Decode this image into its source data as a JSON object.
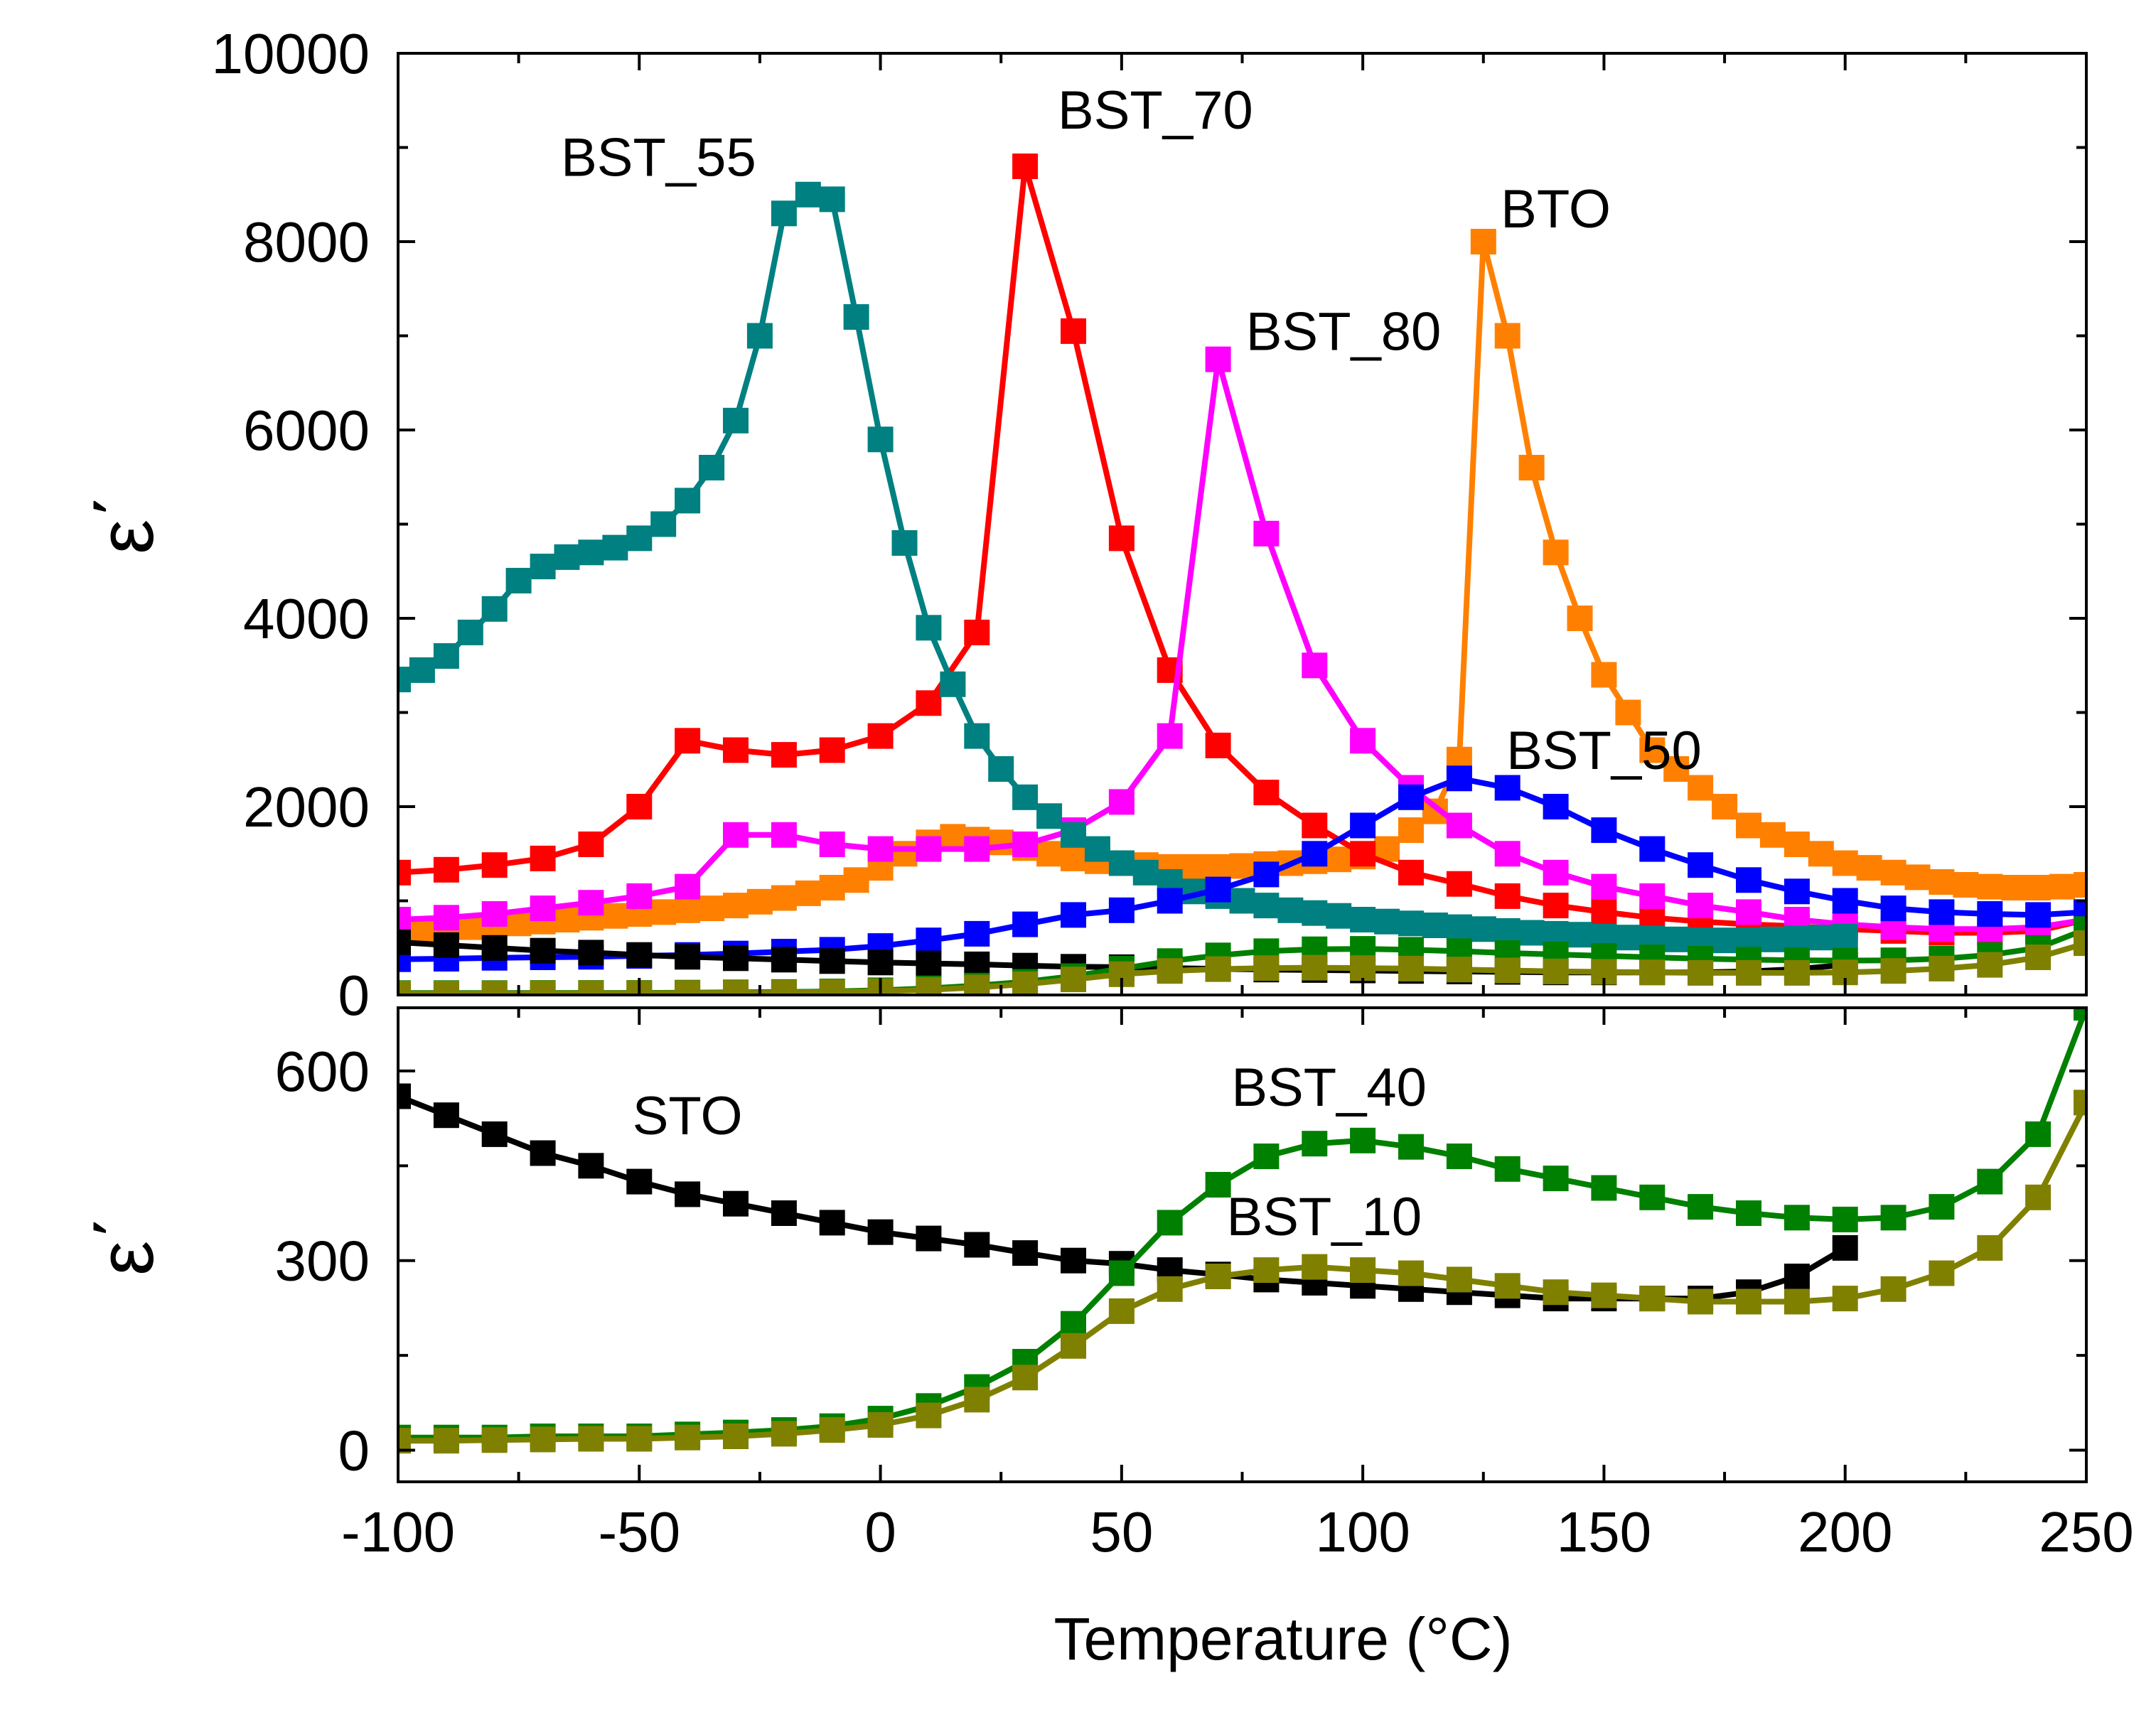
{
  "chart_data": [
    {
      "type": "line",
      "xlabel": "",
      "ylabel": "ε΄",
      "xlim": [
        -100,
        250
      ],
      "ylim": [
        0,
        10000
      ],
      "x_ticks": [
        -100,
        -50,
        0,
        50,
        100,
        150,
        200,
        250
      ],
      "y_ticks": [
        "0",
        "2000",
        "4000",
        "6000",
        "8000",
        "10000"
      ],
      "y_tick_values": [
        0,
        2000,
        4000,
        6000,
        8000,
        10000
      ],
      "grid": false,
      "series": [
        {
          "name": "BTO",
          "color": "#ff8000",
          "x": [
            -100,
            -95,
            -90,
            -85,
            -80,
            -75,
            -70,
            -65,
            -60,
            -55,
            -50,
            -45,
            -40,
            -35,
            -30,
            -25,
            -20,
            -15,
            -10,
            -5,
            0,
            5,
            10,
            15,
            20,
            25,
            30,
            35,
            40,
            45,
            50,
            55,
            60,
            65,
            70,
            75,
            80,
            85,
            90,
            95,
            100,
            105,
            110,
            115,
            120,
            125,
            130,
            135,
            140,
            145,
            150,
            155,
            160,
            165,
            170,
            175,
            180,
            185,
            190,
            195,
            200,
            205,
            210,
            215,
            220,
            225,
            230,
            235,
            240,
            245,
            250
          ],
          "y": [
            650,
            680,
            700,
            720,
            740,
            760,
            780,
            800,
            820,
            840,
            860,
            880,
            900,
            920,
            950,
            990,
            1030,
            1080,
            1140,
            1220,
            1350,
            1500,
            1620,
            1680,
            1650,
            1620,
            1560,
            1500,
            1450,
            1420,
            1400,
            1380,
            1360,
            1360,
            1360,
            1370,
            1390,
            1400,
            1420,
            1440,
            1470,
            1550,
            1750,
            1950,
            2500,
            8000,
            7000,
            5600,
            4700,
            4000,
            3400,
            3000,
            2600,
            2400,
            2200,
            2000,
            1800,
            1700,
            1600,
            1500,
            1400,
            1350,
            1300,
            1250,
            1200,
            1170,
            1150,
            1140,
            1140,
            1150,
            1170
          ]
        },
        {
          "name": "BST_70",
          "color": "#ff0000",
          "x": [
            -100,
            -90,
            -80,
            -70,
            -60,
            -50,
            -40,
            -30,
            -20,
            -10,
            0,
            10,
            20,
            30,
            40,
            50,
            60,
            70,
            80,
            90,
            100,
            110,
            120,
            130,
            140,
            150,
            160,
            170,
            180,
            190,
            200,
            210,
            220,
            230,
            240,
            250
          ],
          "y": [
            1300,
            1330,
            1380,
            1450,
            1600,
            2000,
            2700,
            2600,
            2550,
            2600,
            2750,
            3100,
            3850,
            8800,
            7050,
            4850,
            3450,
            2650,
            2150,
            1800,
            1500,
            1300,
            1180,
            1050,
            950,
            880,
            820,
            780,
            750,
            730,
            700,
            680,
            660,
            660,
            680,
            800
          ]
        },
        {
          "name": "BST_80",
          "color": "#ff00ff",
          "x": [
            -100,
            -90,
            -80,
            -70,
            -60,
            -50,
            -40,
            -30,
            -20,
            -10,
            0,
            10,
            20,
            30,
            40,
            50,
            60,
            70,
            80,
            90,
            100,
            110,
            120,
            130,
            140,
            150,
            160,
            170,
            180,
            190,
            200,
            210,
            220,
            230,
            240,
            250
          ],
          "y": [
            800,
            820,
            860,
            920,
            980,
            1050,
            1150,
            1700,
            1700,
            1600,
            1550,
            1550,
            1550,
            1600,
            1750,
            2050,
            2750,
            6750,
            4900,
            3500,
            2700,
            2200,
            1800,
            1500,
            1300,
            1150,
            1050,
            950,
            880,
            800,
            750,
            720,
            700,
            700,
            720,
            800
          ]
        },
        {
          "name": "BST_55",
          "color": "#008080",
          "x": [
            -100,
            -95,
            -90,
            -85,
            -80,
            -75,
            -70,
            -65,
            -60,
            -55,
            -50,
            -45,
            -40,
            -35,
            -30,
            -25,
            -20,
            -15,
            -10,
            -5,
            0,
            5,
            10,
            15,
            20,
            25,
            30,
            35,
            40,
            45,
            50,
            55,
            60,
            65,
            70,
            75,
            80,
            85,
            90,
            95,
            100,
            105,
            110,
            115,
            120,
            125,
            130,
            135,
            140,
            145,
            150,
            155,
            160,
            165,
            170,
            175,
            180,
            185,
            190,
            195,
            200
          ],
          "y": [
            3350,
            3450,
            3600,
            3850,
            4100,
            4400,
            4550,
            4650,
            4700,
            4750,
            4850,
            5000,
            5250,
            5600,
            6100,
            7000,
            8300,
            8500,
            8450,
            7200,
            5900,
            4800,
            3900,
            3300,
            2750,
            2400,
            2100,
            1900,
            1700,
            1550,
            1400,
            1300,
            1200,
            1100,
            1050,
            1000,
            950,
            900,
            870,
            840,
            800,
            780,
            760,
            740,
            720,
            700,
            680,
            660,
            650,
            640,
            620,
            610,
            600,
            590,
            580,
            580,
            580,
            590,
            600,
            610,
            620
          ]
        },
        {
          "name": "BST_50",
          "color": "#0000ff",
          "x": [
            -100,
            -90,
            -80,
            -70,
            -60,
            -50,
            -40,
            -30,
            -20,
            -10,
            0,
            10,
            20,
            30,
            40,
            50,
            60,
            70,
            80,
            90,
            100,
            110,
            120,
            130,
            140,
            150,
            160,
            170,
            180,
            190,
            200,
            210,
            220,
            230,
            240,
            250
          ],
          "y": [
            380,
            385,
            395,
            400,
            405,
            415,
            425,
            440,
            460,
            480,
            520,
            580,
            650,
            750,
            850,
            900,
            1000,
            1120,
            1280,
            1500,
            1800,
            2100,
            2300,
            2200,
            2000,
            1750,
            1550,
            1380,
            1220,
            1100,
            1000,
            920,
            880,
            860,
            850,
            880
          ]
        },
        {
          "name": "STO",
          "color": "#000000",
          "x": [
            -100,
            -90,
            -80,
            -70,
            -60,
            -50,
            -40,
            -30,
            -20,
            -10,
            0,
            10,
            20,
            30,
            40,
            50,
            60,
            70,
            80,
            90,
            100,
            110,
            120,
            130,
            140,
            150,
            160,
            170,
            180,
            190,
            200
          ],
          "y": [
            560,
            530,
            500,
            470,
            450,
            425,
            405,
            390,
            375,
            360,
            345,
            335,
            325,
            312,
            300,
            295,
            285,
            278,
            270,
            265,
            260,
            255,
            250,
            245,
            240,
            240,
            240,
            240,
            250,
            275,
            320
          ]
        },
        {
          "name": "BST_40",
          "color": "#008000",
          "x": [
            -100,
            -90,
            -80,
            -70,
            -60,
            -50,
            -40,
            -30,
            -20,
            -10,
            0,
            10,
            20,
            30,
            40,
            50,
            60,
            70,
            80,
            90,
            100,
            110,
            120,
            130,
            140,
            150,
            160,
            170,
            180,
            190,
            200,
            210,
            220,
            230,
            240,
            250
          ],
          "y": [
            20,
            20,
            20,
            22,
            22,
            22,
            25,
            28,
            32,
            38,
            50,
            70,
            100,
            140,
            200,
            280,
            360,
            420,
            465,
            485,
            490,
            480,
            465,
            445,
            430,
            415,
            400,
            385,
            375,
            368,
            365,
            368,
            385,
            425,
            500,
            700
          ]
        },
        {
          "name": "BST_10",
          "color": "#808000",
          "x": [
            -100,
            -90,
            -80,
            -70,
            -60,
            -50,
            -40,
            -30,
            -20,
            -10,
            0,
            10,
            20,
            30,
            40,
            50,
            60,
            70,
            80,
            90,
            100,
            110,
            120,
            130,
            140,
            150,
            160,
            170,
            180,
            190,
            200,
            210,
            220,
            230,
            240,
            250
          ],
          "y": [
            15,
            15,
            16,
            17,
            18,
            18,
            20,
            22,
            26,
            32,
            40,
            55,
            80,
            115,
            165,
            220,
            255,
            275,
            285,
            290,
            285,
            280,
            270,
            260,
            250,
            245,
            240,
            235,
            235,
            235,
            240,
            255,
            280,
            320,
            400,
            550
          ]
        }
      ],
      "annotations": [
        {
          "text": "BST_55",
          "x": -46,
          "y": 8700
        },
        {
          "text": "BST_70",
          "x": 57,
          "y": 9200
        },
        {
          "text": "BTO",
          "x": 140,
          "y": 8150
        },
        {
          "text": "BST_80",
          "x": 96,
          "y": 6850
        },
        {
          "text": "BST_50",
          "x": 150,
          "y": 2400
        }
      ]
    },
    {
      "type": "line",
      "xlabel": "Temperature (°C)",
      "ylabel": "ε΄",
      "xlim": [
        -100,
        250
      ],
      "ylim": [
        -50,
        700
      ],
      "x_ticks": [
        "-100",
        "-50",
        "0",
        "50",
        "100",
        "150",
        "200",
        "250"
      ],
      "x_tick_values": [
        -100,
        -50,
        0,
        50,
        100,
        150,
        200,
        250
      ],
      "y_ticks": [
        "0",
        "300",
        "600"
      ],
      "y_tick_values": [
        0,
        300,
        600
      ],
      "grid": false,
      "series": [
        {
          "name": "STO",
          "color": "#000000",
          "x": [
            -100,
            -90,
            -80,
            -70,
            -60,
            -50,
            -40,
            -30,
            -20,
            -10,
            0,
            10,
            20,
            30,
            40,
            50,
            60,
            70,
            80,
            90,
            100,
            110,
            120,
            130,
            140,
            150,
            160,
            170,
            180,
            190,
            200
          ],
          "y": [
            560,
            530,
            500,
            470,
            450,
            425,
            405,
            390,
            375,
            360,
            345,
            335,
            325,
            312,
            300,
            295,
            285,
            278,
            270,
            265,
            260,
            255,
            250,
            245,
            240,
            240,
            240,
            240,
            250,
            275,
            320
          ]
        },
        {
          "name": "BST_40",
          "color": "#008000",
          "x": [
            -100,
            -90,
            -80,
            -70,
            -60,
            -50,
            -40,
            -30,
            -20,
            -10,
            0,
            10,
            20,
            30,
            40,
            50,
            60,
            70,
            80,
            90,
            100,
            110,
            120,
            130,
            140,
            150,
            160,
            170,
            180,
            190,
            200,
            210,
            220,
            230,
            240,
            250
          ],
          "y": [
            20,
            20,
            20,
            22,
            22,
            22,
            25,
            28,
            32,
            38,
            50,
            70,
            100,
            140,
            200,
            280,
            360,
            420,
            465,
            485,
            490,
            480,
            465,
            445,
            430,
            415,
            400,
            385,
            375,
            368,
            365,
            368,
            385,
            425,
            500,
            700
          ]
        },
        {
          "name": "BST_10",
          "color": "#808000",
          "x": [
            -100,
            -90,
            -80,
            -70,
            -60,
            -50,
            -40,
            -30,
            -20,
            -10,
            0,
            10,
            20,
            30,
            40,
            50,
            60,
            70,
            80,
            90,
            100,
            110,
            120,
            130,
            140,
            150,
            160,
            170,
            180,
            190,
            200,
            210,
            220,
            230,
            240,
            250
          ],
          "y": [
            15,
            15,
            16,
            17,
            18,
            18,
            20,
            22,
            26,
            32,
            40,
            55,
            80,
            115,
            165,
            220,
            255,
            275,
            285,
            290,
            285,
            280,
            270,
            260,
            250,
            245,
            240,
            235,
            235,
            235,
            240,
            255,
            280,
            320,
            400,
            550
          ]
        }
      ],
      "annotations": [
        {
          "text": "STO",
          "x": -40,
          "y": 500
        },
        {
          "text": "BST_40",
          "x": 93,
          "y": 545
        },
        {
          "text": "BST_10",
          "x": 92,
          "y": 340
        }
      ]
    }
  ]
}
